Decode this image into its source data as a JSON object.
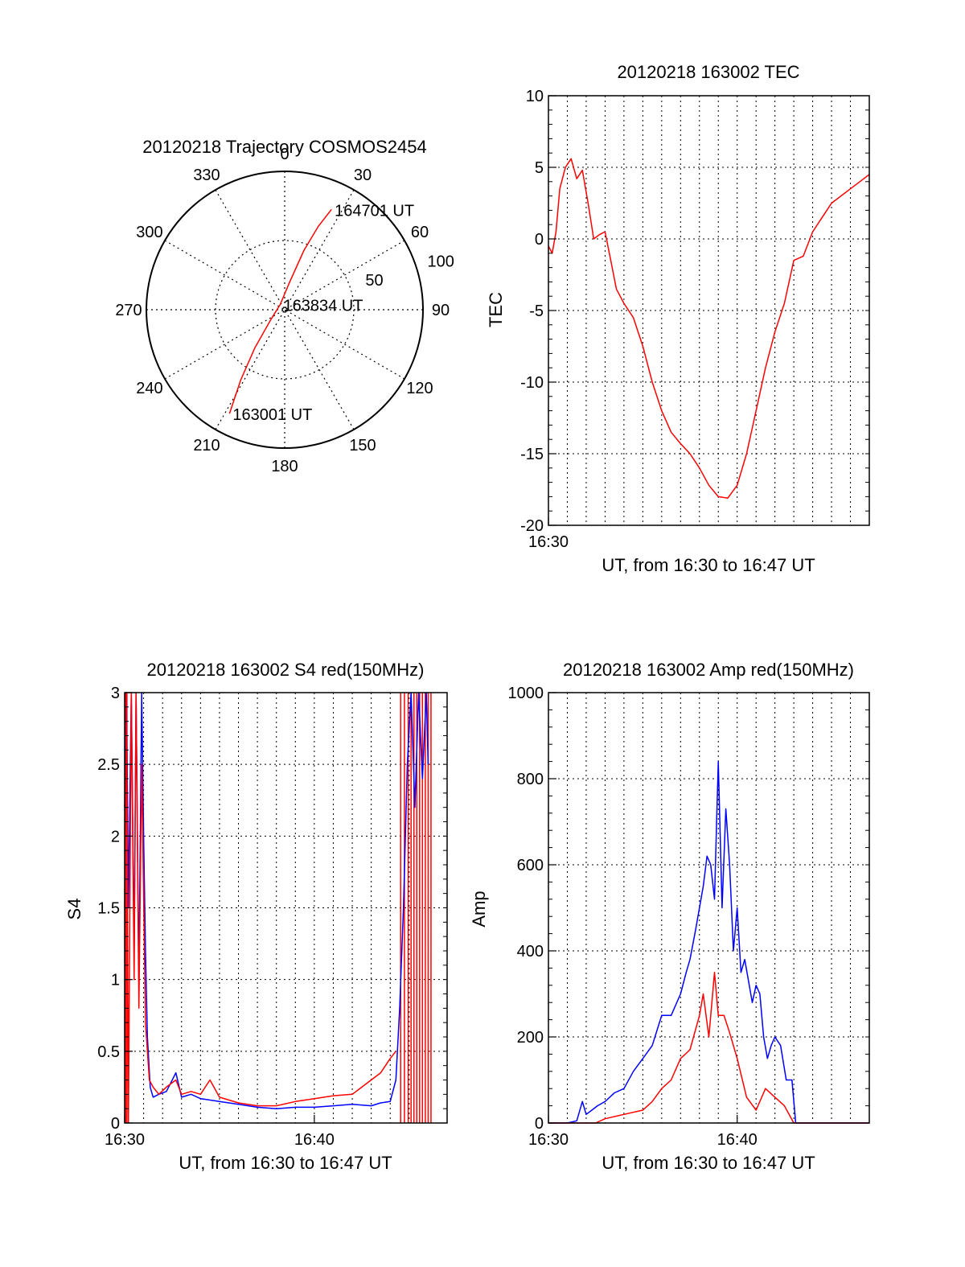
{
  "chart_data": [
    {
      "type": "polar",
      "title": "20120218 Trajectory COSMOS2454",
      "angle_labels": [
        "0",
        "30",
        "60",
        "90",
        "120",
        "150",
        "180",
        "210",
        "240",
        "270",
        "300",
        "330"
      ],
      "radial_labels": [
        "50",
        "100"
      ],
      "rlim": [
        0,
        100
      ],
      "grid": true,
      "series": [
        {
          "color": "#ff0000",
          "points": [
            {
              "az": 208,
              "r": 85,
              "label": "163001 UT"
            },
            {
              "az": 212,
              "r": 60
            },
            {
              "az": 218,
              "r": 35
            },
            {
              "az": 235,
              "r": 12
            },
            {
              "az": 320,
              "r": 5,
              "label": "163834 UT"
            },
            {
              "az": 10,
              "r": 20
            },
            {
              "az": 18,
              "r": 45
            },
            {
              "az": 22,
              "r": 65
            },
            {
              "az": 25,
              "r": 80,
              "label": "164701 UT"
            }
          ]
        }
      ]
    },
    {
      "type": "line",
      "title": "20120218 163002 TEC",
      "xlabel": "UT, from 16:30 to 16:47 UT",
      "ylabel": "TEC",
      "xlim": [
        0,
        17
      ],
      "ylim": [
        -20,
        10
      ],
      "xticks": [
        {
          "v": 0,
          "label": "16:30"
        }
      ],
      "yticks": [
        10,
        5,
        0,
        -5,
        -10,
        -15,
        -20
      ],
      "grid": true,
      "series": [
        {
          "color": "#ff0000",
          "x": [
            0,
            0.2,
            0.4,
            0.6,
            0.9,
            1.2,
            1.5,
            1.8,
            2.1,
            2.4,
            2.7,
            3.0,
            3.3,
            3.6,
            4.0,
            4.5,
            5.0,
            5.5,
            6.0,
            6.5,
            7.0,
            7.5,
            8.0,
            8.5,
            9.0,
            9.5,
            10.0,
            10.5,
            11.0,
            11.5,
            12.0,
            12.5,
            13.0,
            13.5,
            14.0,
            14.5,
            15.0,
            15.5,
            16.0,
            16.5,
            17.0
          ],
          "y": [
            -0.5,
            -1.0,
            0.5,
            3.5,
            5.0,
            5.6,
            4.2,
            4.8,
            2.5,
            0,
            0.3,
            0.5,
            -1.5,
            -3.5,
            -4.5,
            -5.5,
            -7.5,
            -10.0,
            -12.0,
            -13.5,
            -14.3,
            -15.0,
            -16.0,
            -17.2,
            -18.0,
            -18.1,
            -17.2,
            -15.0,
            -12.0,
            -9.0,
            -6.5,
            -4.5,
            -1.5,
            -1.2,
            0.5,
            1.5,
            2.5,
            3.0,
            3.5,
            4.0,
            4.5
          ]
        }
      ]
    },
    {
      "type": "line",
      "title": "20120218 163002 S4 red(150MHz)",
      "xlabel": "UT, from 16:30 to 16:47 UT",
      "ylabel": "S4",
      "xlim": [
        0,
        17
      ],
      "ylim": [
        0,
        3
      ],
      "xticks": [
        {
          "v": 0,
          "label": "16:30"
        },
        {
          "v": 10,
          "label": "16:40"
        }
      ],
      "yticks": [
        3,
        2.5,
        2,
        1.5,
        1,
        0.5,
        0
      ],
      "grid": true,
      "series": [
        {
          "color": "#0000ff",
          "x": [
            0,
            0.1,
            0.2,
            0.35,
            0.5,
            0.6,
            0.75,
            0.9,
            1.0,
            1.1,
            1.2,
            1.35,
            1.5,
            1.8,
            2.2,
            2.7,
            3.0,
            3.5,
            4.0,
            5.0,
            6.0,
            7.0,
            8.0,
            9.0,
            10.0,
            11.0,
            12.0,
            13.0,
            13.5,
            14.0,
            14.3,
            14.5,
            14.7,
            14.9,
            15.1,
            15.3,
            15.5,
            15.7,
            15.9,
            16.0
          ],
          "y": [
            2.2,
            3.0,
            1.5,
            3.0,
            1.2,
            3.0,
            1.0,
            3.0,
            2.0,
            1.2,
            0.6,
            0.25,
            0.18,
            0.2,
            0.22,
            0.35,
            0.18,
            0.2,
            0.17,
            0.15,
            0.13,
            0.11,
            0.1,
            0.11,
            0.11,
            0.12,
            0.13,
            0.12,
            0.14,
            0.15,
            0.3,
            0.8,
            1.5,
            2.5,
            3.0,
            2.2,
            3.0,
            2.4,
            3.0,
            2.5
          ]
        },
        {
          "color": "#ff0000",
          "x": [
            0,
            0.1,
            0.2,
            0.35,
            0.5,
            0.6,
            0.75,
            0.9,
            1.1,
            1.3,
            1.5,
            1.8,
            2.2,
            2.7,
            3.0,
            3.5,
            4.0,
            4.5,
            5.0,
            6.0,
            7.0,
            8.0,
            9.0,
            10.0,
            11.0,
            12.0,
            12.5,
            13.0,
            13.5,
            14.0,
            14.3
          ],
          "y": [
            1.5,
            3.0,
            0,
            3.0,
            1.0,
            3.0,
            0.8,
            2.5,
            0.7,
            0.3,
            0.25,
            0.2,
            0.25,
            0.3,
            0.2,
            0.22,
            0.2,
            0.3,
            0.18,
            0.14,
            0.12,
            0.12,
            0.15,
            0.17,
            0.19,
            0.2,
            0.25,
            0.3,
            0.35,
            0.45,
            0.5
          ]
        }
      ],
      "spikes": {
        "color": "#ff0000",
        "x": [
          0.05,
          0.12,
          14.55,
          14.75,
          14.95,
          15.1,
          15.25,
          15.4,
          15.55,
          15.7,
          15.85,
          16.0,
          16.15
        ]
      }
    },
    {
      "type": "line",
      "title": "20120218 163002 Amp red(150MHz)",
      "xlabel": "UT, from 16:30 to 16:47 UT",
      "ylabel": "Amp",
      "xlim": [
        0,
        17
      ],
      "ylim": [
        0,
        1000
      ],
      "xticks": [
        {
          "v": 0,
          "label": "16:30"
        },
        {
          "v": 10,
          "label": "16:40"
        }
      ],
      "yticks": [
        1000,
        800,
        600,
        400,
        200,
        0
      ],
      "grid": true,
      "series": [
        {
          "color": "#0000ff",
          "x": [
            0,
            1.0,
            1.5,
            1.8,
            2.0,
            2.3,
            2.6,
            3.0,
            3.5,
            4.0,
            4.5,
            5.0,
            5.5,
            6.0,
            6.5,
            7.0,
            7.3,
            7.5,
            7.8,
            8.0,
            8.2,
            8.4,
            8.6,
            8.8,
            9.0,
            9.2,
            9.4,
            9.6,
            9.8,
            10.0,
            10.2,
            10.4,
            10.6,
            10.8,
            11.0,
            11.2,
            11.4,
            11.6,
            11.8,
            12.0,
            12.3,
            12.6,
            12.9,
            13.1,
            13.3,
            14.0,
            17.0
          ],
          "y": [
            0,
            0,
            5,
            50,
            20,
            30,
            40,
            50,
            70,
            80,
            120,
            150,
            180,
            250,
            250,
            300,
            350,
            380,
            450,
            500,
            550,
            620,
            600,
            520,
            840,
            500,
            730,
            600,
            400,
            500,
            350,
            380,
            330,
            280,
            320,
            300,
            200,
            150,
            180,
            200,
            180,
            100,
            100,
            0,
            0,
            0,
            0
          ]
        },
        {
          "color": "#ff0000",
          "x": [
            0,
            2.5,
            3.0,
            3.5,
            4.0,
            5.0,
            5.5,
            6.0,
            6.5,
            7.0,
            7.5,
            8.0,
            8.2,
            8.5,
            8.8,
            9.0,
            9.3,
            9.6,
            10.0,
            10.5,
            11.0,
            11.5,
            12.0,
            12.5,
            13.0,
            17.0
          ],
          "y": [
            0,
            0,
            10,
            15,
            20,
            30,
            50,
            80,
            100,
            150,
            170,
            250,
            300,
            200,
            350,
            250,
            250,
            210,
            150,
            60,
            30,
            80,
            60,
            40,
            0,
            0
          ]
        }
      ]
    }
  ]
}
